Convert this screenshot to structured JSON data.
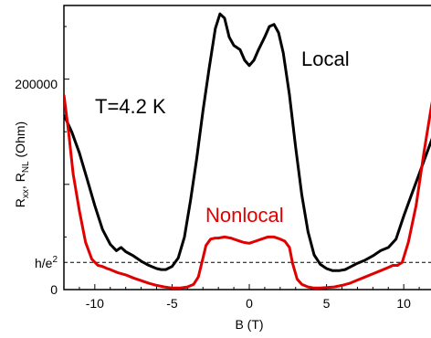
{
  "chart_data": {
    "type": "line",
    "xlabel": "B (T)",
    "ylabel": {
      "r1": "R",
      "s1": "xx",
      "sep": ", R",
      "s2": "NL",
      "unit": " (Ohm)"
    },
    "xlim": [
      -12,
      12
    ],
    "ylim": [
      0,
      270000
    ],
    "x_ticks": [
      -10,
      -5,
      0,
      5,
      10
    ],
    "x_tick_labels": [
      "-10",
      "-5",
      "0",
      "5",
      "10"
    ],
    "y_tick_labels": {
      "zero": {
        "value": 0,
        "label": "0"
      },
      "top": {
        "value": 200000,
        "label": "200000"
      },
      "he2": {
        "value": 25813,
        "base": "h/e",
        "sup": "2"
      }
    },
    "reference_line": {
      "value": 25813,
      "style": "dashed",
      "color": "#000000"
    },
    "annotations": {
      "temperature": "T=4.2 K",
      "local": "Local",
      "nonlocal": "Nonlocal"
    },
    "series": [
      {
        "name": "Local",
        "color": "#000000",
        "x": [
          -12,
          -11.5,
          -11,
          -10.5,
          -10,
          -9.5,
          -9,
          -8.6,
          -8.3,
          -8,
          -7.5,
          -7,
          -6.5,
          -6,
          -5.7,
          -5.4,
          -5,
          -4.6,
          -4.2,
          -3.8,
          -3.4,
          -3,
          -2.6,
          -2.2,
          -1.9,
          -1.6,
          -1.3,
          -1,
          -0.6,
          -0.3,
          0,
          0.3,
          0.6,
          1,
          1.3,
          1.6,
          1.9,
          2.2,
          2.6,
          3,
          3.4,
          3.8,
          4.2,
          4.6,
          5,
          5.4,
          5.8,
          6.2,
          6.6,
          7,
          7.5,
          8,
          8.5,
          9,
          9.5,
          10,
          10.5,
          11,
          11.5,
          12
        ],
        "y": [
          166000,
          150000,
          130000,
          105000,
          80000,
          57000,
          43000,
          37000,
          40000,
          36000,
          32000,
          27000,
          23000,
          20000,
          19000,
          19000,
          22000,
          30000,
          50000,
          85000,
          125000,
          170000,
          210000,
          248000,
          262000,
          258000,
          240000,
          232000,
          228000,
          218000,
          213000,
          218000,
          228000,
          240000,
          250000,
          252000,
          244000,
          225000,
          185000,
          135000,
          90000,
          55000,
          33000,
          24000,
          20000,
          18000,
          18000,
          19000,
          22000,
          25000,
          28000,
          32000,
          37000,
          40000,
          48000,
          70000,
          90000,
          110000,
          130000,
          150000
        ]
      },
      {
        "name": "Nonlocal",
        "color": "#e00000",
        "x": [
          -12,
          -11.7,
          -11.4,
          -11,
          -10.6,
          -10.2,
          -9.8,
          -9.5,
          -9.2,
          -9,
          -8.5,
          -8,
          -7.5,
          -7,
          -6.5,
          -6,
          -5.5,
          -5,
          -4.5,
          -4,
          -3.6,
          -3.3,
          -3,
          -2.8,
          -2.5,
          -2.2,
          -2,
          -1.6,
          -1.2,
          -0.8,
          -0.4,
          0,
          0.4,
          0.8,
          1.2,
          1.6,
          2,
          2.3,
          2.6,
          2.8,
          3.1,
          3.4,
          3.8,
          4.2,
          4.6,
          5,
          5.5,
          6,
          6.5,
          7,
          7.5,
          8,
          8.5,
          9,
          9.3,
          9.6,
          9.9,
          10.3,
          10.8,
          11.3,
          11.8,
          12
        ],
        "y": [
          185000,
          150000,
          110000,
          75000,
          45000,
          29000,
          23000,
          22000,
          20000,
          19000,
          16000,
          14000,
          11000,
          8500,
          6000,
          4000,
          2500,
          1500,
          1500,
          2500,
          5000,
          12000,
          30000,
          42000,
          48000,
          49000,
          49000,
          50000,
          49000,
          47000,
          45000,
          44000,
          46000,
          48000,
          50000,
          50000,
          48000,
          46000,
          40000,
          25000,
          10000,
          5000,
          2500,
          1500,
          1500,
          2000,
          2500,
          4000,
          6000,
          9000,
          12000,
          15000,
          18000,
          21000,
          23000,
          23000,
          26000,
          45000,
          80000,
          130000,
          175000,
          190000
        ]
      }
    ]
  }
}
